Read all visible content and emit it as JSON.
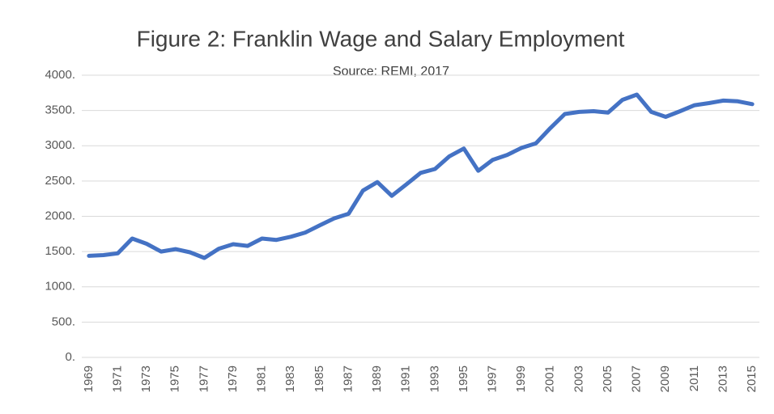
{
  "chart_data": {
    "type": "line",
    "title": "Figure 2: Franklin Wage and Salary Employment",
    "subtitle": "Source: REMI, 2017",
    "categories": [
      "1969",
      null,
      "1971",
      null,
      "1973",
      null,
      "1975",
      null,
      "1977",
      null,
      "1979",
      null,
      "1981",
      null,
      "1983",
      null,
      "1985",
      null,
      "1987",
      null,
      "1989",
      null,
      "1991",
      null,
      "1993",
      null,
      "1995",
      null,
      "1997",
      null,
      "1999",
      null,
      "2001",
      null,
      "2003",
      null,
      "2005",
      null,
      "2007",
      null,
      "2009",
      null,
      "2011",
      null,
      "2013",
      null,
      "2015"
    ],
    "series": [
      {
        "name": "Employment",
        "color": "#4472c4",
        "values": [
          1440,
          1450,
          1475,
          1685,
          1610,
          1500,
          1535,
          1490,
          1410,
          1540,
          1605,
          1580,
          1685,
          1665,
          1710,
          1770,
          1870,
          1970,
          2035,
          2365,
          2485,
          2290,
          2450,
          2615,
          2670,
          2850,
          2960,
          2645,
          2800,
          2870,
          2970,
          3035,
          3250,
          3450,
          3480,
          3490,
          3470,
          3650,
          3725,
          3480,
          3410,
          3490,
          3575,
          3605,
          3640,
          3630,
          3590
        ]
      }
    ],
    "ylim": [
      0,
      4000
    ],
    "yticks": [
      {
        "value": 0,
        "label": "0."
      },
      {
        "value": 500,
        "label": "500."
      },
      {
        "value": 1000,
        "label": "1000."
      },
      {
        "value": 1500,
        "label": "1500."
      },
      {
        "value": 2000,
        "label": "2000."
      },
      {
        "value": 2500,
        "label": "2500."
      },
      {
        "value": 3000,
        "label": "3000."
      },
      {
        "value": 3500,
        "label": "3500."
      },
      {
        "value": 4000,
        "label": "4000."
      }
    ],
    "grid": true
  }
}
